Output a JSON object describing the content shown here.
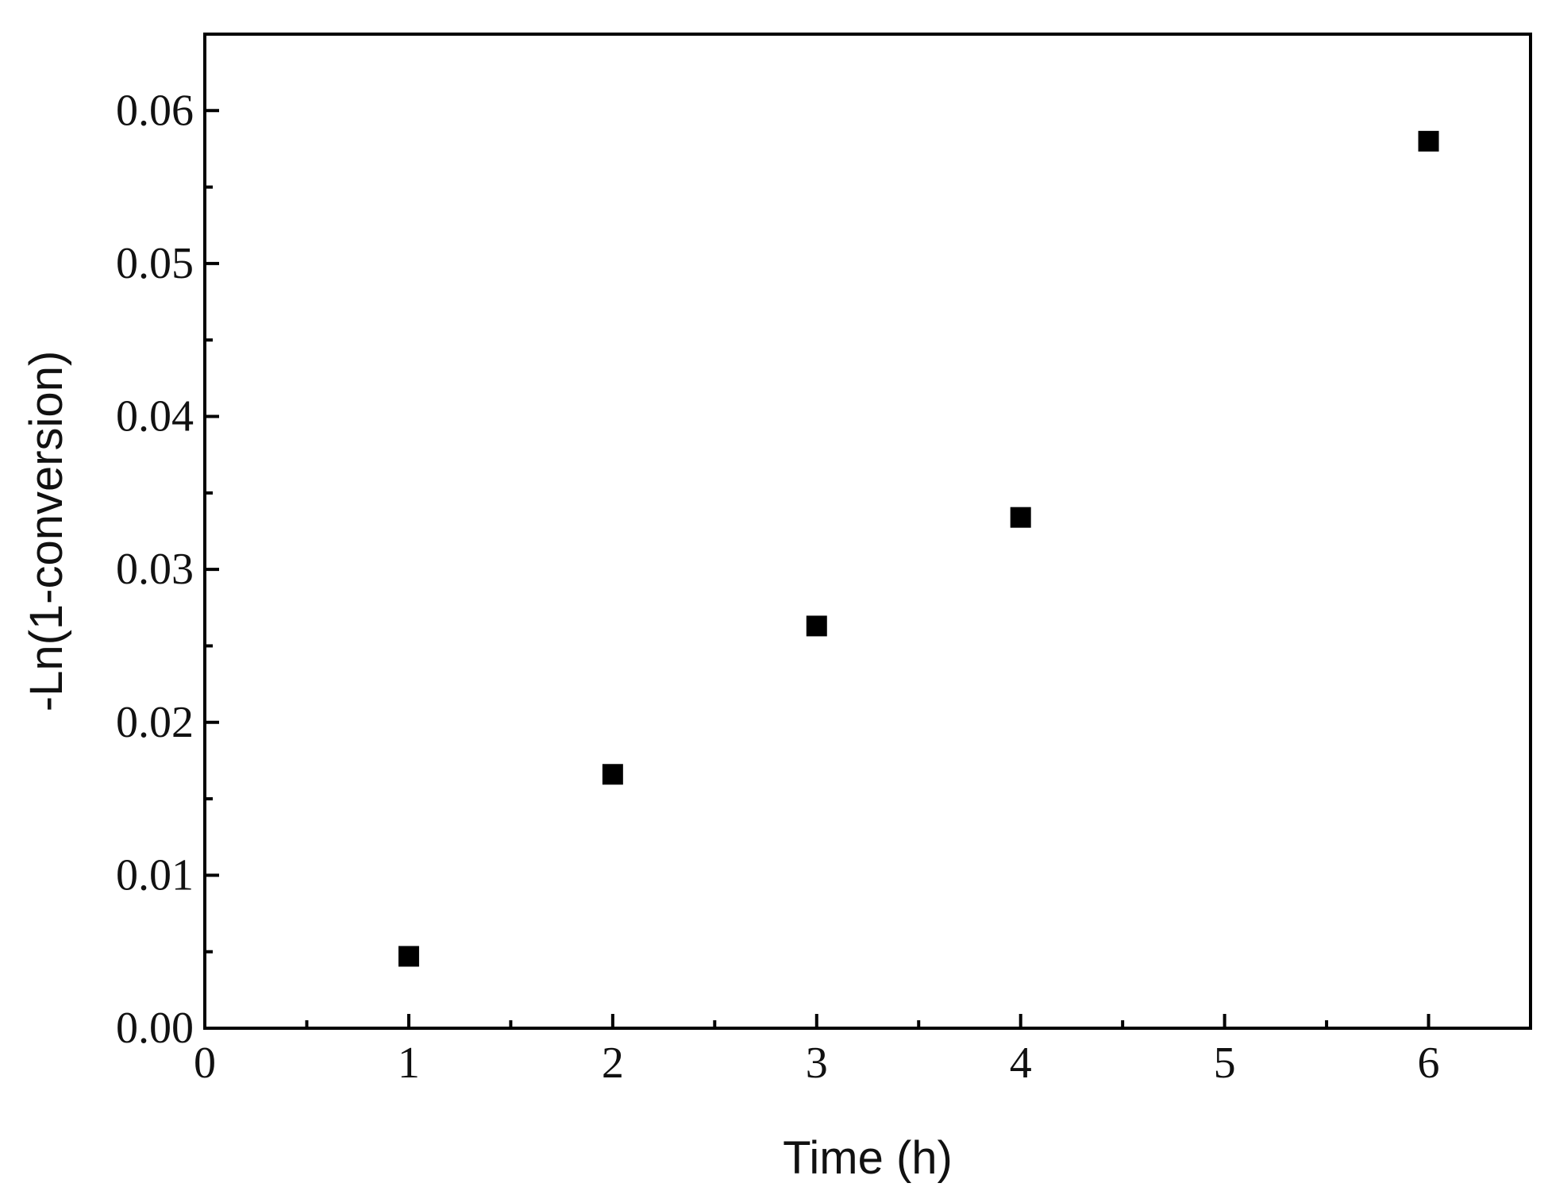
{
  "chart_data": {
    "type": "scatter",
    "title": "",
    "xlabel": "Time (h)",
    "ylabel": "-Ln(1-conversion)",
    "xlim": [
      0,
      6.5
    ],
    "ylim": [
      0,
      0.065
    ],
    "x_major_ticks": [
      0,
      1,
      2,
      3,
      4,
      5,
      6
    ],
    "x_tick_labels": [
      "0",
      "1",
      "2",
      "3",
      "4",
      "5",
      "6"
    ],
    "x_minor_ticks": [
      0.5,
      1.5,
      2.5,
      3.5,
      4.5,
      5.5
    ],
    "y_major_ticks": [
      0,
      0.01,
      0.02,
      0.03,
      0.04,
      0.05,
      0.06
    ],
    "y_tick_labels": [
      "0.00",
      "0.01",
      "0.02",
      "0.03",
      "0.04",
      "0.05",
      "0.06"
    ],
    "y_minor_ticks": [
      0.005,
      0.015,
      0.025,
      0.035,
      0.045,
      0.055
    ],
    "grid": false,
    "legend": "none",
    "marker": "square",
    "color": "#000000",
    "series": [
      {
        "x": [
          1,
          2,
          3,
          4,
          6
        ],
        "y": [
          0.0047,
          0.0166,
          0.0263,
          0.0334,
          0.058
        ]
      }
    ]
  }
}
